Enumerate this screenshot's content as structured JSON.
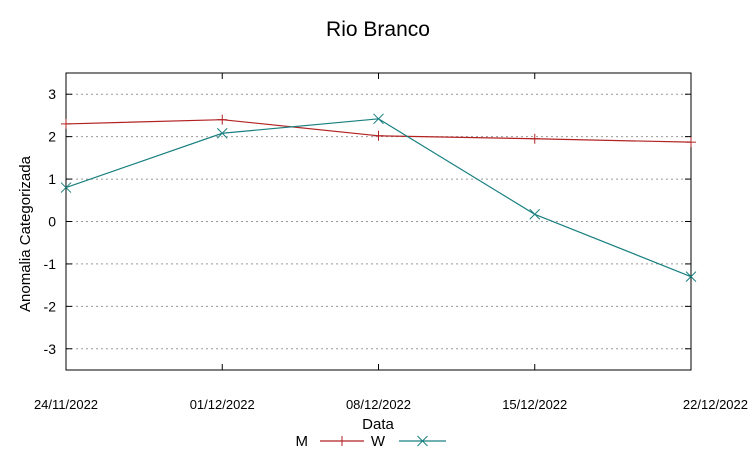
{
  "chart_data": {
    "type": "line",
    "title": "Rio Branco",
    "xlabel": "Data",
    "ylabel": "Anomalia Categorizada",
    "x": [
      "24/11/2022",
      "01/12/2022",
      "08/12/2022",
      "15/12/2022",
      "22/12/2022"
    ],
    "xticks": [
      "24/11/2022",
      "01/12/2022",
      "08/12/2022",
      "15/12/2022",
      "22/12/2022"
    ],
    "ylim": [
      -3.5,
      3.5
    ],
    "yticks": [
      "3",
      "2",
      "1",
      "0",
      "-1",
      "-2",
      "-3"
    ],
    "ytick_values": [
      3,
      2,
      1,
      0,
      -1,
      -2,
      -3
    ],
    "grid": true,
    "legend_position": "bottom-center",
    "series": [
      {
        "name": "M",
        "color": "#b22222",
        "marker": "plus",
        "values": [
          2.3,
          2.4,
          2.02,
          1.95,
          1.87
        ]
      },
      {
        "name": "W",
        "color": "#1a8080",
        "marker": "cross",
        "values": [
          0.8,
          2.08,
          2.42,
          0.17,
          -1.3
        ]
      }
    ]
  }
}
